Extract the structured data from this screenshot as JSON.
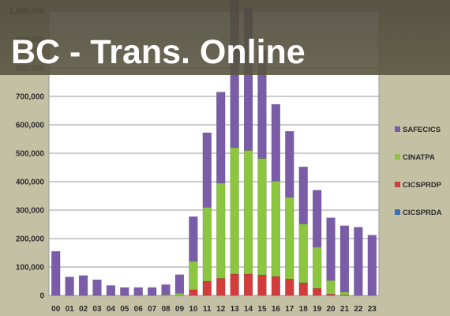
{
  "banner": {
    "title": "BC - Trans. Online"
  },
  "chart_data": {
    "type": "bar",
    "stacked": true,
    "categories": [
      "00",
      "01",
      "02",
      "03",
      "04",
      "05",
      "06",
      "07",
      "08",
      "09",
      "10",
      "11",
      "12",
      "13",
      "14",
      "15",
      "16",
      "17",
      "18",
      "19",
      "20",
      "21",
      "22",
      "23"
    ],
    "ylim": [
      0,
      1000000
    ],
    "yticks": [
      0,
      100000,
      200000,
      300000,
      400000,
      500000,
      600000,
      700000,
      800000,
      900000,
      1000000
    ],
    "ytick_labels": [
      "0",
      "100,000",
      "200,000",
      "300,000",
      "400,000",
      "500,000",
      "600,000",
      "700,000",
      "800,000",
      "900,000",
      "1,000,000"
    ],
    "grid": true,
    "legend_position": "right",
    "series": [
      {
        "name": "CICSPRDA",
        "color": "#3a6fc0",
        "values": [
          0,
          0,
          0,
          0,
          0,
          0,
          0,
          0,
          0,
          0,
          0,
          0,
          0,
          0,
          0,
          0,
          0,
          0,
          0,
          0,
          0,
          0,
          0,
          0
        ]
      },
      {
        "name": "CICSPRDP",
        "color": "#d43c3c",
        "values": [
          0,
          0,
          0,
          0,
          0,
          0,
          0,
          0,
          0,
          0,
          20000,
          50000,
          60000,
          75000,
          75000,
          72000,
          67000,
          58000,
          45000,
          25000,
          5000,
          2000,
          0,
          0
        ]
      },
      {
        "name": "CINATPA",
        "color": "#8cc63e",
        "values": [
          0,
          0,
          0,
          0,
          0,
          0,
          0,
          0,
          3000,
          8000,
          100000,
          260000,
          335000,
          445000,
          435000,
          410000,
          335000,
          287000,
          207000,
          145000,
          48000,
          10000,
          0,
          0
        ]
      },
      {
        "name": "SAFECICS",
        "color": "#7a5ca8",
        "values": [
          155000,
          65000,
          70000,
          55000,
          35000,
          28000,
          28000,
          28000,
          35000,
          65000,
          157000,
          262000,
          320000,
          530000,
          500000,
          380000,
          270000,
          232000,
          200000,
          200000,
          220000,
          233000,
          240000,
          212000
        ]
      }
    ]
  }
}
